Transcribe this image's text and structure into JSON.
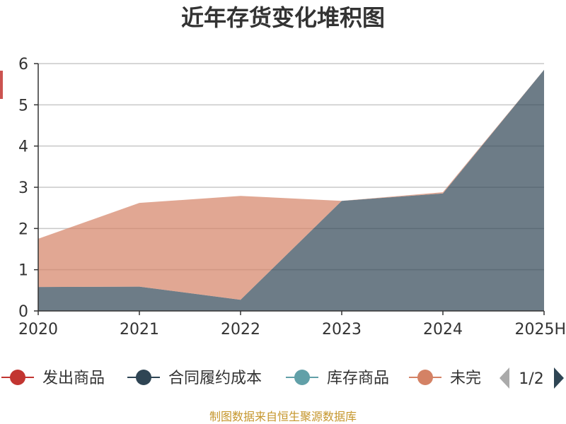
{
  "chart_data": {
    "type": "area",
    "stacked": true,
    "title": "近年存货变化堆积图",
    "x": [
      "2020",
      "2021",
      "2022",
      "2023",
      "2024",
      "2025H"
    ],
    "ylim": [
      0,
      6
    ],
    "yticks": [
      "0",
      "1",
      "2",
      "3",
      "4",
      "5",
      "6"
    ],
    "grid": true,
    "series": [
      {
        "name": "发出商品",
        "color": "#c23531",
        "values": [
          0,
          0,
          0,
          0,
          0,
          0
        ]
      },
      {
        "name": "合同履约成本",
        "color": "#2f4554",
        "values": [
          0.58,
          0.59,
          0.27,
          2.67,
          2.85,
          5.85
        ]
      },
      {
        "name": "库存商品",
        "color": "#61a0a8",
        "values": [
          0,
          0,
          0,
          0,
          0,
          0
        ]
      },
      {
        "name": "未完",
        "color": "#d48265",
        "values": [
          1.17,
          2.03,
          2.52,
          0,
          0.03,
          0
        ]
      }
    ],
    "legend": {
      "position": "bottom",
      "page": "1/2"
    }
  },
  "source": "制图数据来自恒生聚源数据库"
}
